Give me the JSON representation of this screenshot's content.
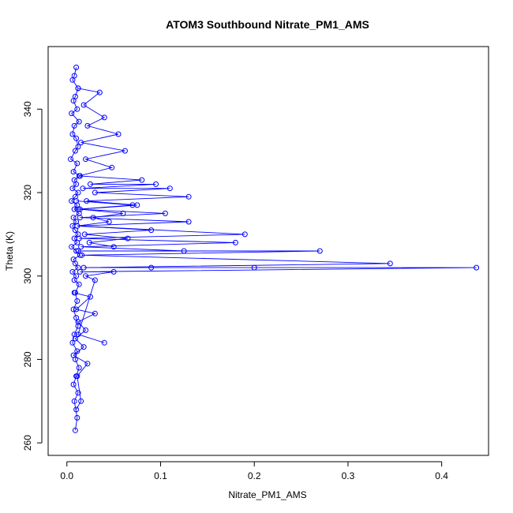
{
  "chart_data": {
    "type": "line",
    "title": "ATOM3 Southbound Nitrate_PM1_AMS",
    "xlabel": "Nitrate_PM1_AMS",
    "ylabel": "Theta (K)",
    "xlim": [
      -0.02,
      0.45
    ],
    "ylim": [
      257,
      355
    ],
    "x_ticks": [
      0.0,
      0.1,
      0.2,
      0.3,
      0.4
    ],
    "x_tick_labels": [
      "0.0",
      "0.1",
      "0.2",
      "0.3",
      "0.4"
    ],
    "y_ticks": [
      260,
      280,
      300,
      320,
      340
    ],
    "y_tick_labels": [
      "260",
      "280",
      "300",
      "320",
      "340"
    ],
    "grid": false,
    "color": "#0000ff",
    "marker": "open-circle",
    "series": [
      {
        "x": [
          0.01,
          0.008,
          0.006,
          0.012,
          0.009,
          0.007,
          0.011,
          0.005,
          0.013,
          0.008,
          0.006,
          0.01,
          0.012,
          0.009,
          0.004,
          0.011,
          0.007,
          0.014,
          0.008,
          0.01,
          0.006,
          0.012,
          0.009,
          0.005,
          0.011,
          0.008,
          0.013,
          0.007,
          0.01,
          0.006,
          0.009,
          0.012,
          0.008,
          0.011,
          0.005,
          0.01,
          0.014,
          0.007,
          0.009,
          0.012,
          0.006,
          0.01,
          0.008,
          0.013,
          0.009,
          0.011,
          0.007,
          0.01,
          0.012,
          0.008,
          0.006,
          0.011,
          0.009,
          0.013,
          0.01,
          0.007,
          0.012,
          0.008,
          0.011,
          0.009
        ],
        "y": [
          350,
          348,
          347,
          345,
          343,
          342,
          340,
          339,
          337,
          336,
          334,
          333,
          331,
          330,
          328,
          327,
          325,
          324,
          323,
          322,
          321,
          320,
          319,
          318,
          317,
          316,
          315,
          314,
          313,
          312,
          311,
          310,
          309,
          308,
          307,
          306,
          305,
          304,
          303,
          302,
          301,
          300,
          299,
          298,
          296,
          294,
          292,
          290,
          288,
          286,
          284,
          282,
          280,
          278,
          276,
          274,
          272,
          270,
          266,
          263
        ]
      },
      {
        "x": [
          0.012,
          0.035,
          0.018,
          0.04,
          0.022,
          0.055,
          0.015,
          0.062,
          0.02,
          0.048,
          0.013,
          0.08,
          0.025,
          0.095,
          0.017,
          0.11,
          0.03,
          0.13,
          0.021,
          0.075,
          0.014,
          0.06,
          0.028,
          0.045,
          0.011,
          0.09,
          0.019,
          0.065,
          0.024,
          0.05
        ],
        "y": [
          345,
          344,
          341,
          338,
          336,
          334,
          332,
          330,
          328,
          326,
          324,
          323,
          322,
          322,
          321,
          321,
          320,
          319,
          318,
          317,
          316,
          315,
          314,
          313,
          312,
          311,
          310,
          309,
          308,
          307
        ]
      },
      {
        "x": [
          0.01,
          0.07,
          0.012,
          0.105,
          0.014,
          0.13,
          0.011,
          0.19,
          0.013,
          0.18,
          0.015,
          0.125,
          0.012,
          0.27,
          0.016,
          0.345,
          0.018,
          0.2,
          0.09,
          0.437,
          0.014,
          0.05,
          0.02,
          0.03,
          0.012,
          0.04
        ],
        "y": [
          318,
          317,
          316,
          315,
          314,
          313,
          312,
          310,
          309,
          308,
          307,
          306,
          306,
          306,
          305,
          303,
          302,
          302,
          302,
          302,
          301,
          301,
          300,
          299,
          286,
          284
        ]
      },
      {
        "x": [
          0.008,
          0.025,
          0.01,
          0.03,
          0.012,
          0.02,
          0.009,
          0.018,
          0.007,
          0.022,
          0.011,
          0.015,
          0.01
        ],
        "y": [
          296,
          295,
          292,
          291,
          289,
          287,
          285,
          283,
          281,
          279,
          276,
          270,
          268
        ]
      }
    ]
  }
}
